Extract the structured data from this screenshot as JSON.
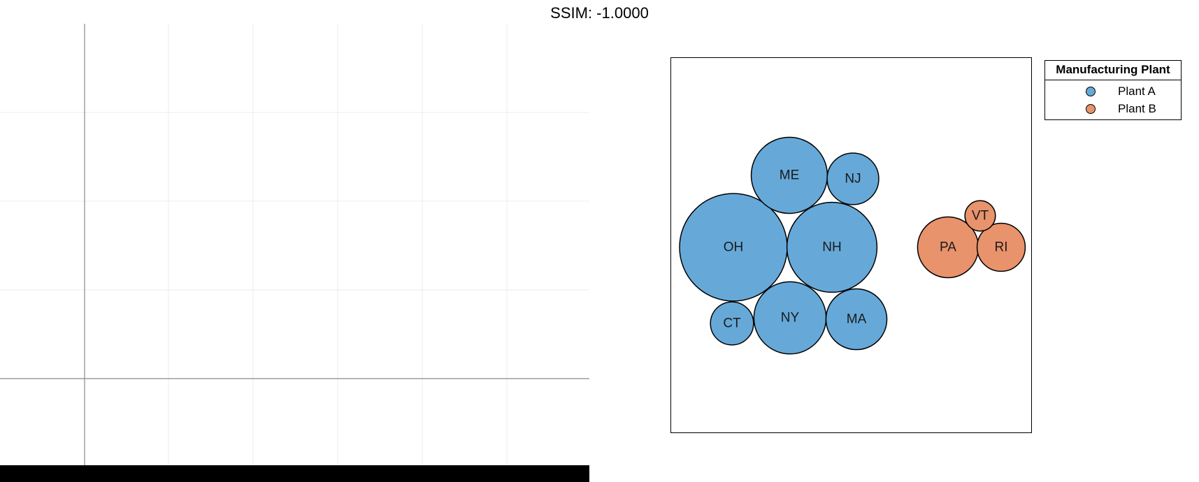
{
  "title": "SSIM: -1.0000",
  "chart_data": [
    {
      "type": "line",
      "title": "",
      "xlabel": "",
      "ylabel": "",
      "grid": true,
      "series": []
    },
    {
      "type": "scatter",
      "subtype": "packed-bubble",
      "title": "",
      "legend_title": "Manufacturing Plant",
      "legend_position": "top-right",
      "series": [
        {
          "name": "Plant A",
          "color": "#66a9d8",
          "points": [
            {
              "label": "OH",
              "value": 100
            },
            {
              "label": "NH",
              "value": 70
            },
            {
              "label": "NY",
              "value": 45
            },
            {
              "label": "ME",
              "value": 50
            },
            {
              "label": "MA",
              "value": 32
            },
            {
              "label": "NJ",
              "value": 23
            },
            {
              "label": "CT",
              "value": 16
            }
          ]
        },
        {
          "name": "Plant B",
          "color": "#e8936c",
          "points": [
            {
              "label": "PA",
              "value": 32
            },
            {
              "label": "RI",
              "value": 20
            },
            {
              "label": "VT",
              "value": 8
            }
          ]
        }
      ]
    }
  ]
}
